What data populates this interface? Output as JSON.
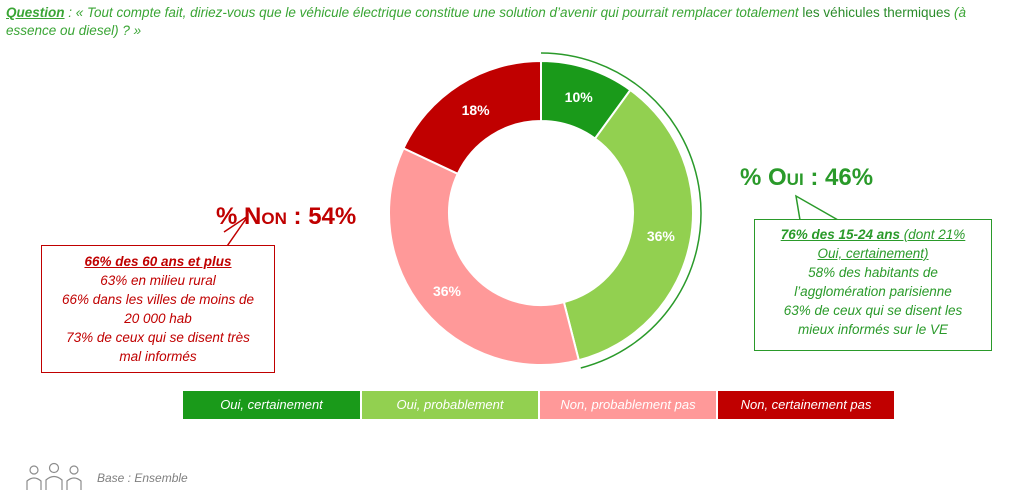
{
  "question": {
    "label": "Question",
    "text_before": " : « Tout compte fait, diriez-vous que le véhicule électrique constitue une solution d’avenir qui pourrait remplacer totalement ",
    "emphasis": "les véhicules thermiques",
    "text_after": " (à essence ou diesel) ? »"
  },
  "totals": {
    "yes": "% Oui : 46%",
    "no": "% Non : 54%"
  },
  "callout_no": {
    "line1": "66% des 60 ans et plus",
    "line2": "63% en milieu rural",
    "line3": "66% dans les villes de moins de",
    "line4": "20 000 hab",
    "line5": "73% de ceux qui se disent très",
    "line6": "mal informés"
  },
  "callout_yes": {
    "line1": "76% des 15-24 ans",
    "line1b": " (dont 21%",
    "line2": "Oui, certainement)",
    "line3": "58% des habitants de",
    "line4": "l’agglomération parisienne",
    "line5": "63% de ceux qui se disent les",
    "line6": "mieux informés sur le VE"
  },
  "base": "Base : Ensemble",
  "icons": {
    "people": "people-group-icon"
  },
  "chart_data": {
    "type": "pie",
    "donut": true,
    "categories": [
      "Oui, certainement",
      "Oui, probablement",
      "Non, probablement pas",
      "Non, certainement pas"
    ],
    "values": [
      10,
      36,
      36,
      18
    ],
    "value_labels": [
      "10%",
      "36%",
      "36%",
      "18%"
    ],
    "colors": [
      "#1a9a1a",
      "#92d050",
      "#ff9999",
      "#c00000"
    ],
    "label_colors": [
      "#ffffff",
      "#ffffff",
      "#ffffff",
      "#ffffff"
    ],
    "legend_position": "bottom"
  }
}
